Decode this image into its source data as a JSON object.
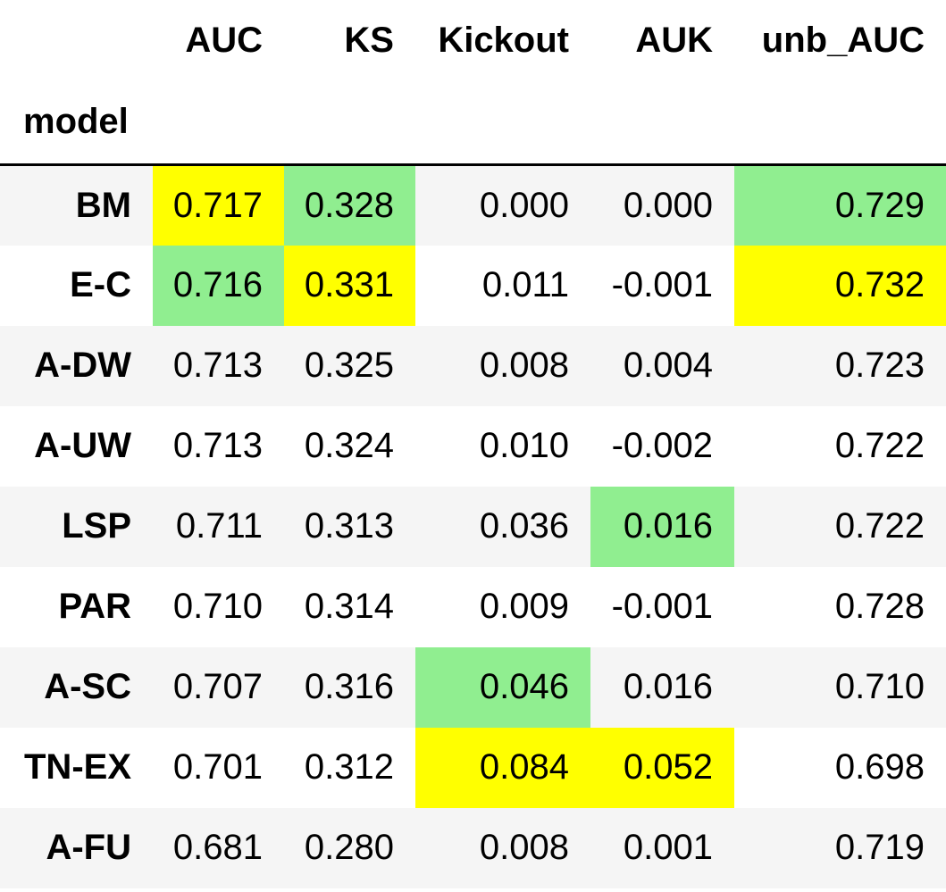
{
  "table": {
    "columns": [
      "AUC",
      "KS",
      "Kickout",
      "AUK",
      "unb_AUC"
    ],
    "index_name": "model",
    "colors": {
      "yellow": "#ffff00",
      "green": "#90ee90",
      "stripe": "#f5f5f5"
    },
    "rows": [
      {
        "model": "BM",
        "values": [
          "0.717",
          "0.328",
          "0.000",
          "0.000",
          "0.729"
        ],
        "highlights": [
          "yellow",
          "green",
          "",
          "",
          "green"
        ]
      },
      {
        "model": "E-C",
        "values": [
          "0.716",
          "0.331",
          "0.011",
          "-0.001",
          "0.732"
        ],
        "highlights": [
          "green",
          "yellow",
          "",
          "",
          "yellow"
        ]
      },
      {
        "model": "A-DW",
        "values": [
          "0.713",
          "0.325",
          "0.008",
          "0.004",
          "0.723"
        ],
        "highlights": [
          "",
          "",
          "",
          "",
          ""
        ]
      },
      {
        "model": "A-UW",
        "values": [
          "0.713",
          "0.324",
          "0.010",
          "-0.002",
          "0.722"
        ],
        "highlights": [
          "",
          "",
          "",
          "",
          ""
        ]
      },
      {
        "model": "LSP",
        "values": [
          "0.711",
          "0.313",
          "0.036",
          "0.016",
          "0.722"
        ],
        "highlights": [
          "",
          "",
          "",
          "green",
          ""
        ]
      },
      {
        "model": "PAR",
        "values": [
          "0.710",
          "0.314",
          "0.009",
          "-0.001",
          "0.728"
        ],
        "highlights": [
          "",
          "",
          "",
          "",
          ""
        ]
      },
      {
        "model": "A-SC",
        "values": [
          "0.707",
          "0.316",
          "0.046",
          "0.016",
          "0.710"
        ],
        "highlights": [
          "",
          "",
          "green",
          "",
          ""
        ]
      },
      {
        "model": "TN-EX",
        "values": [
          "0.701",
          "0.312",
          "0.084",
          "0.052",
          "0.698"
        ],
        "highlights": [
          "",
          "",
          "yellow",
          "yellow",
          ""
        ]
      },
      {
        "model": "A-FU",
        "values": [
          "0.681",
          "0.280",
          "0.008",
          "0.001",
          "0.719"
        ],
        "highlights": [
          "",
          "",
          "",
          "",
          ""
        ]
      }
    ]
  }
}
